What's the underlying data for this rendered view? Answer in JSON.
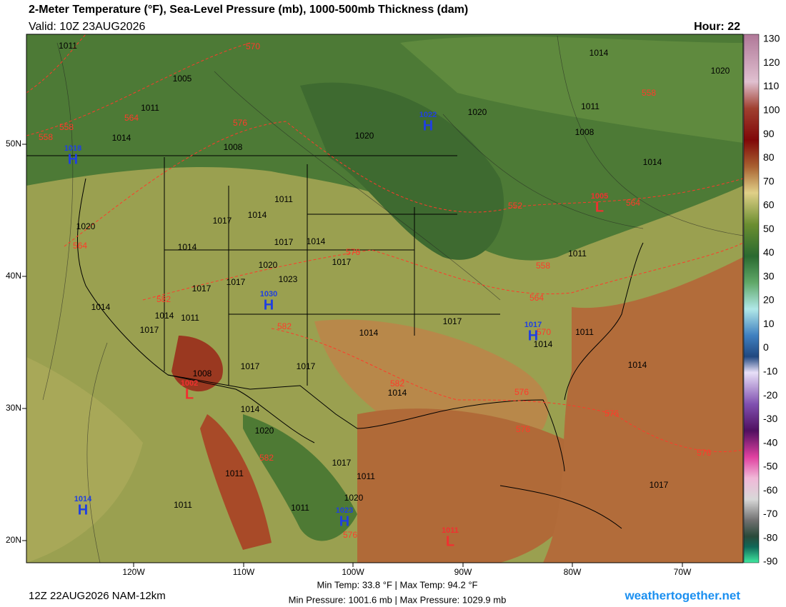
{
  "header": {
    "title": "2-Meter Temperature (°F), Sea-Level Pressure (mb), 1000-500mb Thickness (dam)",
    "valid": "Valid: 10Z 23AUG2026",
    "hour": "Hour: 22"
  },
  "map": {
    "lat_labels": [
      "50N",
      "40N",
      "30N",
      "20N"
    ],
    "lon_labels": [
      "120W",
      "110W",
      "100W",
      "90W",
      "80W",
      "70W"
    ],
    "pressure_labels": [
      "1011",
      "1005",
      "1011",
      "1014",
      "1008",
      "1020",
      "1020",
      "1014",
      "1020",
      "1011",
      "1008",
      "1014",
      "1011",
      "1014",
      "1017",
      "1014",
      "1017",
      "1020",
      "1014",
      "1017",
      "1020",
      "1023",
      "1017",
      "1017",
      "1014",
      "1014",
      "1011",
      "1017",
      "1017",
      "1014",
      "1011",
      "1014",
      "1008",
      "1017",
      "1017",
      "1014",
      "1014",
      "1014",
      "1020",
      "1017",
      "1011",
      "1011",
      "1020",
      "1017",
      "1011",
      "1011",
      "1011"
    ],
    "thickness_labels": [
      "570",
      "576",
      "558",
      "558",
      "564",
      "564",
      "558",
      "552",
      "564",
      "576",
      "558",
      "564",
      "570",
      "582",
      "582",
      "582",
      "576",
      "576",
      "582",
      "576",
      "576",
      "576"
    ],
    "centers": [
      {
        "symbol": "H",
        "value": "1018"
      },
      {
        "symbol": "H",
        "value": "1022"
      },
      {
        "symbol": "H",
        "value": "1030"
      },
      {
        "symbol": "H",
        "value": "1017"
      },
      {
        "symbol": "H",
        "value": "1014"
      },
      {
        "symbol": "H",
        "value": "1023"
      },
      {
        "symbol": "L",
        "value": "1005"
      },
      {
        "symbol": "L",
        "value": "1002"
      },
      {
        "symbol": "L",
        "value": "1011"
      }
    ]
  },
  "colorbar": {
    "labels": [
      "130",
      "120",
      "110",
      "100",
      "90",
      "80",
      "70",
      "60",
      "50",
      "40",
      "30",
      "20",
      "10",
      "0",
      "-10",
      "-20",
      "-30",
      "-40",
      "-50",
      "-60",
      "-70",
      "-80",
      "-90"
    ]
  },
  "footer": {
    "run": "12Z 22AUG2026 NAM-12km",
    "temp_range": "Min Temp: 33.8 °F | Max Temp: 94.2 °F",
    "pressure_range": "Min Pressure: 1001.6 mb | Max Pressure: 1029.9 mb",
    "site": "weathertogether.net"
  }
}
